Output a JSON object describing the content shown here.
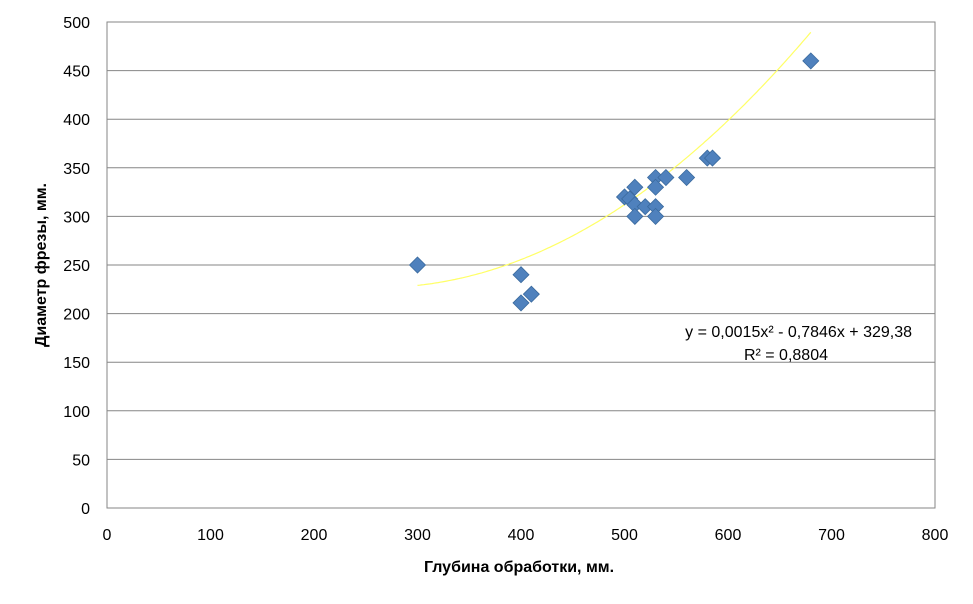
{
  "chart_data": {
    "type": "scatter",
    "title": "",
    "xlabel": "Глубина обработки, мм.",
    "ylabel": "Диаметр фрезы, мм.",
    "xlim": [
      0,
      800
    ],
    "ylim": [
      0,
      500
    ],
    "x_ticks": [
      0,
      100,
      200,
      300,
      400,
      500,
      600,
      700,
      800
    ],
    "y_ticks": [
      0,
      50,
      100,
      150,
      200,
      250,
      300,
      350,
      400,
      450,
      500
    ],
    "x_tick_labels": [
      "0",
      "100",
      "200",
      "300",
      "400",
      "500",
      "600",
      "700",
      "800"
    ],
    "y_tick_labels": [
      "0",
      "50",
      "100",
      "150",
      "200",
      "250",
      "300",
      "350",
      "400",
      "450",
      "500"
    ],
    "grid": "horizontal",
    "legend": "none",
    "series": [
      {
        "marker": "diamond",
        "color": "#4F81BD",
        "points": [
          {
            "x": 300,
            "y": 250
          },
          {
            "x": 400,
            "y": 240
          },
          {
            "x": 400,
            "y": 211
          },
          {
            "x": 410,
            "y": 220
          },
          {
            "x": 500,
            "y": 320
          },
          {
            "x": 505,
            "y": 318
          },
          {
            "x": 510,
            "y": 330
          },
          {
            "x": 510,
            "y": 312
          },
          {
            "x": 510,
            "y": 300
          },
          {
            "x": 520,
            "y": 310
          },
          {
            "x": 530,
            "y": 340
          },
          {
            "x": 530,
            "y": 330
          },
          {
            "x": 530,
            "y": 310
          },
          {
            "x": 530,
            "y": 300
          },
          {
            "x": 540,
            "y": 340
          },
          {
            "x": 560,
            "y": 340
          },
          {
            "x": 580,
            "y": 360
          },
          {
            "x": 585,
            "y": 360
          },
          {
            "x": 680,
            "y": 460
          }
        ]
      }
    ],
    "trendline": {
      "type": "polynomial",
      "coefficients": [
        0.0015,
        -0.7846,
        329.38
      ],
      "x_range": [
        300,
        680
      ],
      "color": "#FFFF66",
      "equation_text": "y = 0,0015x² - 0,7846x + 329,38",
      "r2_text": "R² = 0,8804"
    }
  }
}
